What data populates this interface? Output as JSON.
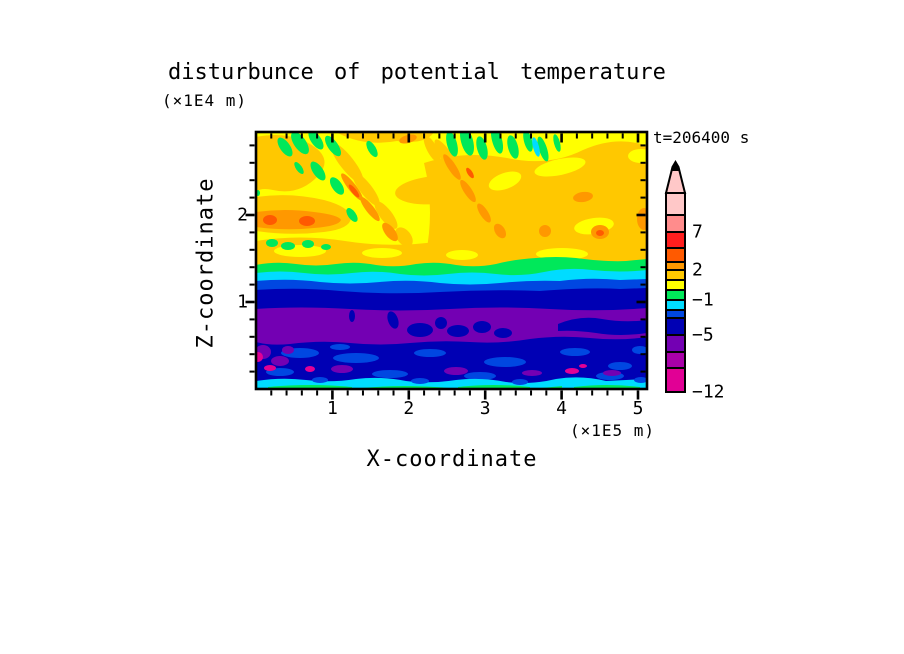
{
  "chart_data": {
    "type": "filled-contour",
    "title": "disturbunce of potential temperature",
    "time_annotation": "t=206400 s",
    "x_axis": {
      "label": "X-coordinate",
      "unit": "(×1E5 m)",
      "tick_labels": [
        "1",
        "2",
        "3",
        "4",
        "5"
      ],
      "tick_values": [
        1,
        2,
        3,
        4,
        5
      ],
      "minor_tick_step": 0.2,
      "range_x1e5_m": [
        0,
        5.1
      ]
    },
    "y_axis": {
      "label": "Z-coordinate",
      "unit": "(×1E4 m)",
      "tick_labels": [
        "1",
        "2"
      ],
      "tick_values": [
        1,
        2
      ],
      "minor_tick_step": 0.2,
      "range_x1e4_m": [
        0,
        2.95
      ]
    },
    "colorbar": {
      "orientation": "vertical",
      "arrow_tip": true,
      "segment_colors_top_to_bottom": [
        "#FFC8C8",
        "#FF8C8C",
        "#FF1E1E",
        "#FF5A00",
        "#FF9800",
        "#FFC800",
        "#FFFF00",
        "#00E85A",
        "#00DCFF",
        "#0047E1",
        "#0000B4",
        "#7300B3",
        "#A800A8",
        "#E10095"
      ],
      "labels": [
        {
          "text": "7",
          "value": 7,
          "after_segment": 2
        },
        {
          "text": "2",
          "value": 2,
          "after_segment": 5
        },
        {
          "text": "−1",
          "value": -1,
          "after_segment": 8
        },
        {
          "text": "−5",
          "value": -5,
          "after_segment": 11
        },
        {
          "text": "−12",
          "value": -12,
          "after_segment": 14
        }
      ]
    },
    "field_summary": {
      "bands_bottom_to_top": [
        {
          "z_1e4_m": [
            0.0,
            0.05
          ],
          "color": "#00E85A",
          "note": "patchy green strip along bottom edge"
        },
        {
          "z_1e4_m": [
            0.05,
            0.12
          ],
          "color": "#00DCFF",
          "note": "cyan strip"
        },
        {
          "z_1e4_m": [
            0.12,
            0.55
          ],
          "color": "#0000B4",
          "note": "dark blue layer with blue streaks, small purple and magenta patches"
        },
        {
          "z_1e4_m": [
            0.55,
            0.95
          ],
          "color": "#7300B3",
          "note": "purple layer with dark blue intrusions in centre and right"
        },
        {
          "z_1e4_m": [
            0.95,
            1.12
          ],
          "color": "#0000B4",
          "note": "dark blue layer"
        },
        {
          "z_1e4_m": [
            1.12,
            1.25
          ],
          "color": "#0047E1",
          "note": "blue strip"
        },
        {
          "z_1e4_m": [
            1.25,
            1.35
          ],
          "color": "#00DCFF",
          "note": "cyan strip"
        },
        {
          "z_1e4_m": [
            1.35,
            1.45
          ],
          "color": "#00E85A",
          "note": "green strip"
        },
        {
          "z_1e4_m": [
            1.45,
            2.95
          ],
          "color": "#FFFF00",
          "note": "yellow/gold region with slanted gravity-wave streaks of orange and green cells near the top"
        }
      ]
    }
  }
}
